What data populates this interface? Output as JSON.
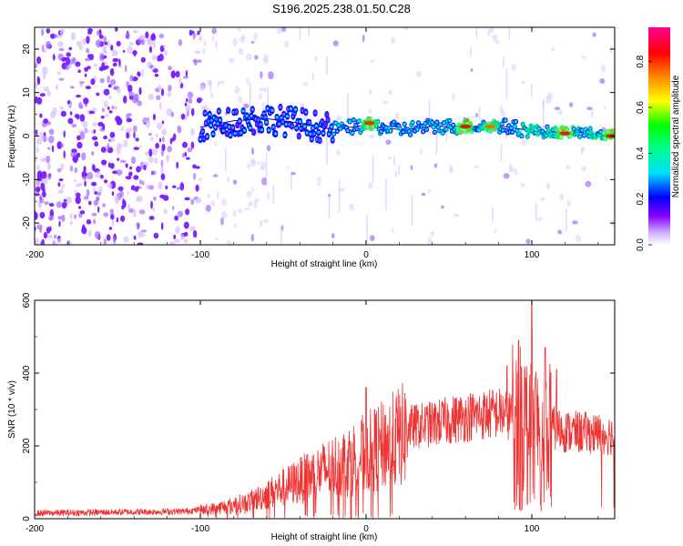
{
  "title": "S196.2025.238.01.50.C28",
  "chart_data": [
    {
      "id": "spectrogram",
      "type": "heatmap",
      "xlabel": "Height of straight line (km)",
      "ylabel": "Frequency (Hz)",
      "xlim": [
        -200,
        150
      ],
      "ylim": [
        -25,
        25
      ],
      "xticks": [
        -200,
        -100,
        0,
        100
      ],
      "xtick_labels": [
        "-200",
        "-100",
        "0",
        "100"
      ],
      "yticks": [
        -20,
        -10,
        0,
        10,
        20
      ],
      "ytick_labels": [
        "-20",
        "-10",
        "0",
        "10",
        "20"
      ],
      "colorbar": {
        "label": "Normalized spectral amplitude",
        "range": [
          0.0,
          0.95
        ],
        "ticks": [
          0.0,
          0.2,
          0.4,
          0.6,
          0.8
        ],
        "tick_labels": [
          "0.0",
          "0.2",
          "0.4",
          "0.6",
          "0.8"
        ],
        "colors": [
          "#ffffff",
          "#8a00ff",
          "#0000ff",
          "#00e0ff",
          "#00ff80",
          "#00ff00",
          "#ffff00",
          "#ff8000",
          "#ff0000",
          "#ff0090"
        ]
      },
      "ridge": [
        {
          "x": -100,
          "y": 2.0
        },
        {
          "x": -80,
          "y": 3.5
        },
        {
          "x": -60,
          "y": 4.0
        },
        {
          "x": -40,
          "y": 3.0
        },
        {
          "x": -20,
          "y": 1.5
        },
        {
          "x": 0,
          "y": 2.5
        },
        {
          "x": 20,
          "y": 1.5
        },
        {
          "x": 40,
          "y": 2.2
        },
        {
          "x": 60,
          "y": 2.2
        },
        {
          "x": 80,
          "y": 2.4
        },
        {
          "x": 95,
          "y": 1.5
        },
        {
          "x": 105,
          "y": 1.0
        },
        {
          "x": 130,
          "y": 0.8
        },
        {
          "x": 150,
          "y": 0.0
        }
      ],
      "hot_spots": [
        {
          "x": 2,
          "y": 3,
          "amp": 0.85
        },
        {
          "x": 60,
          "y": 2.2,
          "amp": 0.9
        },
        {
          "x": 75,
          "y": 2.2,
          "amp": 0.8
        },
        {
          "x": 120,
          "y": 0.6,
          "amp": 0.95
        },
        {
          "x": 148,
          "y": 0.0,
          "amp": 0.9
        }
      ]
    },
    {
      "id": "snr",
      "type": "line",
      "xlabel": "Height of straight line (km)",
      "ylabel": "SNR (10 * v/v)",
      "xlim": [
        -200,
        150
      ],
      "ylim": [
        0,
        600
      ],
      "xticks": [
        -200,
        -100,
        0,
        100
      ],
      "xtick_labels": [
        "-200",
        "-100",
        "0",
        "100"
      ],
      "yticks": [
        0,
        200,
        400,
        600
      ],
      "ytick_labels": [
        "0",
        "200",
        "400",
        "600"
      ],
      "color": "#ee3333",
      "envelope": [
        {
          "x": -200,
          "y": 15
        },
        {
          "x": -150,
          "y": 18
        },
        {
          "x": -110,
          "y": 20
        },
        {
          "x": -90,
          "y": 30
        },
        {
          "x": -70,
          "y": 50
        },
        {
          "x": -50,
          "y": 90
        },
        {
          "x": -30,
          "y": 130
        },
        {
          "x": -10,
          "y": 170
        },
        {
          "x": 10,
          "y": 210
        },
        {
          "x": 25,
          "y": 250
        },
        {
          "x": 40,
          "y": 260
        },
        {
          "x": 60,
          "y": 280
        },
        {
          "x": 80,
          "y": 290
        },
        {
          "x": 95,
          "y": 280
        },
        {
          "x": 105,
          "y": 260
        },
        {
          "x": 120,
          "y": 240
        },
        {
          "x": 150,
          "y": 230
        }
      ],
      "peaks": [
        {
          "x": 0,
          "y": 360
        },
        {
          "x": 100,
          "y": 600
        },
        {
          "x": 92,
          "y": 490
        },
        {
          "x": 108,
          "y": 470
        },
        {
          "x": 85,
          "y": 420
        },
        {
          "x": 115,
          "y": 410
        }
      ]
    }
  ]
}
